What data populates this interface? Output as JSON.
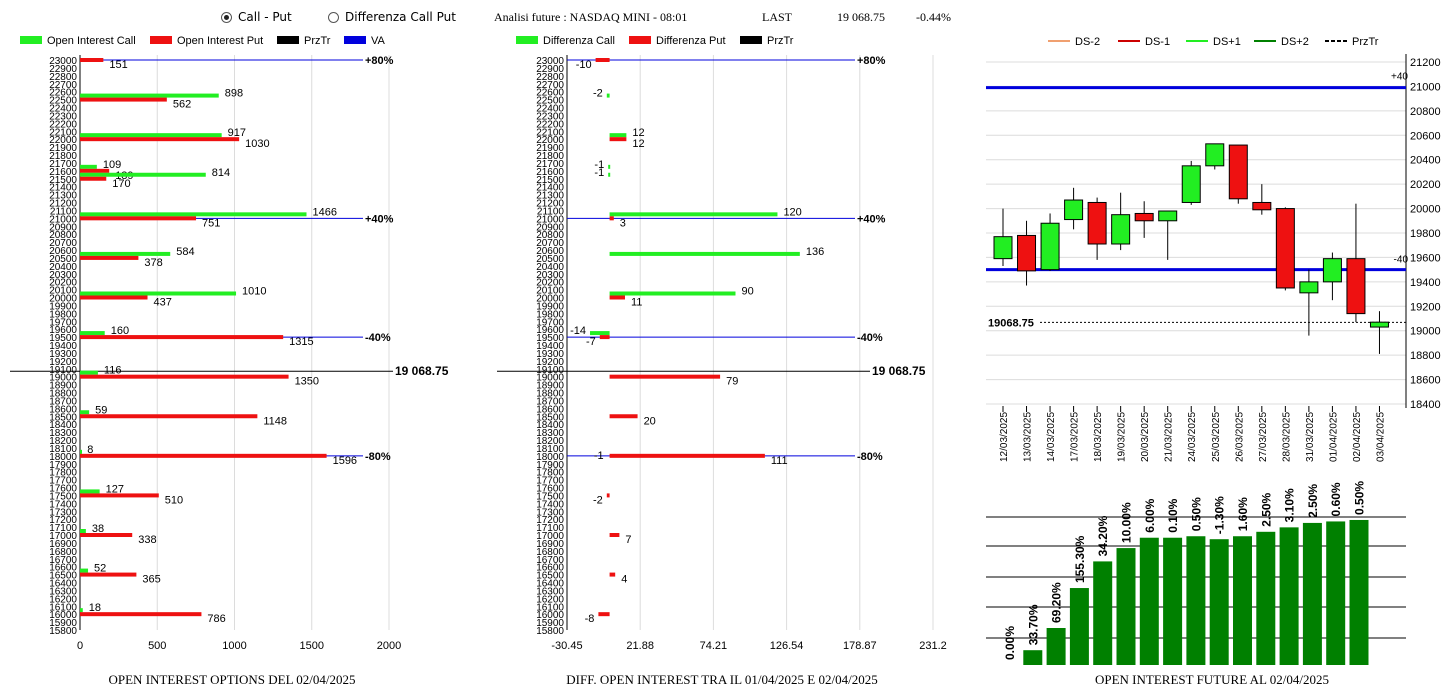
{
  "header": {
    "radio_call_put": "Call - Put",
    "radio_diff": "Differenza Call Put",
    "title": "Analisi future : NASDAQ MINI - 08:01",
    "last_label": "LAST",
    "last_value": "19 068.75",
    "last_change": "-0.44%"
  },
  "colors": {
    "green": "#22ee22",
    "red": "#ee1111",
    "blue": "#0000dd",
    "black": "#000000",
    "dark_green": "#008000",
    "orange": "#f0a070",
    "dark_red": "#cc0000"
  },
  "chart_data": [
    {
      "type": "bar",
      "orientation": "horizontal",
      "caption": "OPEN INTEREST OPTIONS DEL 02/04/2025",
      "legend": [
        "Open Interest Call",
        "Open Interest Put",
        "PrzTr",
        "VA"
      ],
      "legend_placement": "top",
      "y_ticks": [
        "23000",
        "22900",
        "22800",
        "22700",
        "22600",
        "22500",
        "22400",
        "22300",
        "22200",
        "22100",
        "22000",
        "21900",
        "21800",
        "21700",
        "21600",
        "21500",
        "21400",
        "21300",
        "21200",
        "21100",
        "21000",
        "20900",
        "20800",
        "20700",
        "20600",
        "20500",
        "20400",
        "20300",
        "20200",
        "20100",
        "20000",
        "19900",
        "19800",
        "19700",
        "19600",
        "19500",
        "19400",
        "19300",
        "19200",
        "19100",
        "19000",
        "18900",
        "18800",
        "18700",
        "18600",
        "18500",
        "18400",
        "18300",
        "18200",
        "18100",
        "18000",
        "17900",
        "17800",
        "17700",
        "17600",
        "17500",
        "17400",
        "17300",
        "17200",
        "17100",
        "17000",
        "16900",
        "16800",
        "16700",
        "16600",
        "16500",
        "16400",
        "16300",
        "16200",
        "16100",
        "16000",
        "15900",
        "15800"
      ],
      "x_ticks": [
        "0",
        "500",
        "1000",
        "1500",
        "2000"
      ],
      "xlim": [
        0,
        2000
      ],
      "strikes": [
        23000,
        22500,
        22000,
        21600,
        21500,
        21000,
        20500,
        20000,
        19500,
        19000,
        18500,
        18000,
        17500,
        17000,
        16500,
        16000
      ],
      "call": [
        0,
        898,
        917,
        109,
        814,
        1466,
        584,
        1010,
        160,
        116,
        59,
        8,
        127,
        38,
        52,
        18
      ],
      "put": [
        151,
        562,
        1030,
        189,
        170,
        751,
        378,
        437,
        1315,
        1350,
        1148,
        1596,
        510,
        338,
        365,
        786
      ],
      "call_labels": [
        "",
        "898",
        "917",
        "109",
        "814",
        "1466",
        "584",
        "1010",
        "160",
        "116",
        "59",
        "8",
        "127",
        "38",
        "52",
        "18"
      ],
      "put_labels": [
        "151",
        "562",
        "1030",
        "189",
        "170",
        "751",
        "378",
        "437",
        "1315",
        "1350",
        "1148",
        "1596",
        "510",
        "338",
        "365",
        "786"
      ],
      "levels": [
        {
          "strike": 23000,
          "label": "+80%"
        },
        {
          "strike": 21000,
          "label": "+40%"
        },
        {
          "strike": 19500,
          "label": "-40%"
        },
        {
          "strike": 18000,
          "label": "-80%"
        }
      ],
      "przTr": {
        "value": 19068.75,
        "label": "19 068.75"
      }
    },
    {
      "type": "bar",
      "orientation": "horizontal",
      "caption": "DIFF. OPEN INTEREST TRA IL 01/04/2025 E 02/04/2025",
      "legend": [
        "Differenza Call",
        "Differenza Put",
        "PrzTr"
      ],
      "legend_placement": "top",
      "x_ticks": [
        "-30.45",
        "21.88",
        "74.21",
        "126.54",
        "178.87",
        "231.2"
      ],
      "xlim": [
        -30.45,
        231.2
      ],
      "strikes": [
        23000,
        22500,
        22000,
        21600,
        21500,
        21000,
        20500,
        20000,
        19500,
        19000,
        18500,
        18000,
        17500,
        17000,
        16500,
        16000
      ],
      "call": [
        0,
        -2,
        12,
        -1,
        -1,
        120,
        136,
        90,
        -14,
        0,
        0,
        0,
        0,
        0,
        0,
        0
      ],
      "put": [
        -10,
        0,
        12,
        0,
        0,
        3,
        0,
        11,
        -7,
        79,
        20,
        111,
        -2,
        7,
        4,
        -8
      ],
      "call_labels": [
        "",
        "-2",
        "12",
        "-1",
        "-1",
        "120",
        "136",
        "90",
        "-14",
        "",
        "",
        "",
        "",
        "",
        "",
        ""
      ],
      "put_labels": [
        "-10",
        "",
        "12",
        "",
        "",
        "3",
        "",
        "11",
        "-7",
        "79",
        "20",
        "111",
        "-2",
        "7",
        "4",
        "-8"
      ],
      "extra_labels": [
        {
          "strike": 18000,
          "label": "-1"
        }
      ],
      "levels": [
        {
          "strike": 23000,
          "label": "+80%"
        },
        {
          "strike": 21000,
          "label": "+40%"
        },
        {
          "strike": 19500,
          "label": "-40%"
        },
        {
          "strike": 18000,
          "label": "-80%"
        }
      ],
      "przTr": {
        "value": 19068.75,
        "label": "19 068.75"
      }
    },
    {
      "type": "candlestick",
      "legend": [
        "DS-2",
        "DS-1",
        "DS+1",
        "DS+2",
        "PrzTr"
      ],
      "legend_placement": "top",
      "y_ticks": [
        "21200",
        "21000",
        "20800",
        "20600",
        "20400",
        "20200",
        "20000",
        "19800",
        "19600",
        "19400",
        "19200",
        "19000",
        "18800",
        "18600",
        "18400"
      ],
      "ylim": [
        18400,
        21200
      ],
      "dates": [
        "12/03/2025",
        "13/03/2025",
        "14/03/2025",
        "17/03/2025",
        "18/03/2025",
        "19/03/2025",
        "20/03/2025",
        "21/03/2025",
        "24/03/2025",
        "25/03/2025",
        "26/03/2025",
        "27/03/2025",
        "28/03/2025",
        "31/03/2025",
        "01/04/2025",
        "02/04/2025",
        "03/04/2025"
      ],
      "ohlc": [
        {
          "o": 19590,
          "h": 20000,
          "l": 19530,
          "c": 19770
        },
        {
          "o": 19780,
          "h": 19900,
          "l": 19370,
          "c": 19490
        },
        {
          "o": 19500,
          "h": 19960,
          "l": 19490,
          "c": 19880
        },
        {
          "o": 19910,
          "h": 20170,
          "l": 19830,
          "c": 20070
        },
        {
          "o": 20050,
          "h": 20090,
          "l": 19580,
          "c": 19710
        },
        {
          "o": 19710,
          "h": 20130,
          "l": 19660,
          "c": 19950
        },
        {
          "o": 19960,
          "h": 20060,
          "l": 19760,
          "c": 19900
        },
        {
          "o": 19900,
          "h": 19970,
          "l": 19580,
          "c": 19980
        },
        {
          "o": 20050,
          "h": 20390,
          "l": 20030,
          "c": 20350
        },
        {
          "o": 20350,
          "h": 20520,
          "l": 20320,
          "c": 20530
        },
        {
          "o": 20520,
          "h": 20520,
          "l": 20040,
          "c": 20080
        },
        {
          "o": 20050,
          "h": 20200,
          "l": 19950,
          "c": 19990
        },
        {
          "o": 20000,
          "h": 20010,
          "l": 19330,
          "c": 19350
        },
        {
          "o": 19310,
          "h": 19500,
          "l": 18960,
          "c": 19400
        },
        {
          "o": 19400,
          "h": 19640,
          "l": 19250,
          "c": 19590
        },
        {
          "o": 19590,
          "h": 20040,
          "l": 19070,
          "c": 19140
        },
        {
          "o": 19030,
          "h": 19160,
          "l": 18810,
          "c": 19070
        }
      ],
      "levels": [
        {
          "value": 20990,
          "label": "+40"
        },
        {
          "value": 19500,
          "label": "-40"
        }
      ],
      "przTr": {
        "value": 19068.75,
        "label": "19068.75"
      }
    },
    {
      "type": "bar",
      "caption": "OPEN INTEREST FUTURE AL 02/04/2025",
      "values": [
        0,
        1,
        2.5,
        5.2,
        7,
        7.9,
        8.6,
        8.6,
        8.7,
        8.5,
        8.7,
        9.0,
        9.3,
        9.6,
        9.7,
        9.8
      ],
      "labels": [
        "0.00%",
        "33.70%",
        "69.20%",
        "155.30%",
        "34.20%",
        "10.00%",
        "6.00%",
        "0.10%",
        "0.50%",
        "-1.30%",
        "1.60%",
        "2.50%",
        "3.10%",
        "2.50%",
        "0.60%",
        "0.50%"
      ],
      "ylim": [
        0,
        10
      ]
    }
  ]
}
